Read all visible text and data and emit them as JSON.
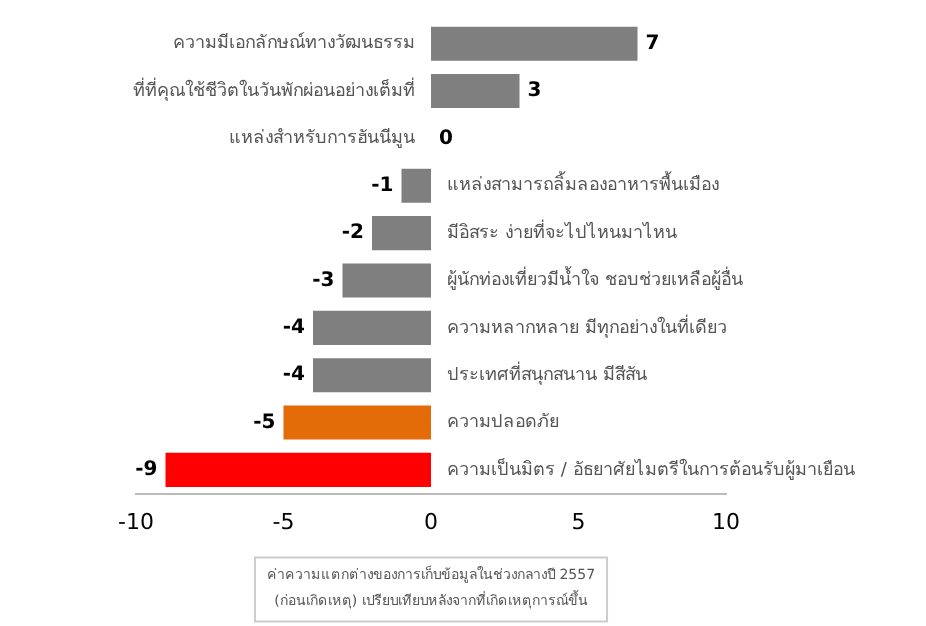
{
  "chart_data": {
    "type": "bar",
    "orientation": "horizontal",
    "categories": [
      "ความมีเอกลักษณ์ทางวัฒนธรรม",
      "ที่ที่คุณใช้ชีวิตในวันพักผ่อนอย่างเต็มที่",
      "แหล่งสำหรับการฮันนีมูน",
      "แหล่งสามารถลิ้มลองอาหารพื้นเมือง",
      "มีอิสระ ง่ายที่จะไปไหนมาไหน",
      "ผู้นักท่องเที่ยวมีน้ำใจ ชอบช่วยเหลือผู้อื่น",
      "ความหลากหลาย มีทุกอย่างในที่เดียว",
      "ประเทศที่สนุกสนาน มีสีสัน",
      "ความปลอดภัย",
      "ความเป็นมิตร / อัธยาศัยไมตรีในการต้อนรับผู้มาเยือน"
    ],
    "values": [
      7,
      3,
      0,
      -1,
      -2,
      -3,
      -4,
      -4,
      -5,
      -9
    ],
    "colors": [
      "#7f7f7f",
      "#7f7f7f",
      "#7f7f7f",
      "#7f7f7f",
      "#7f7f7f",
      "#7f7f7f",
      "#7f7f7f",
      "#7f7f7f",
      "#e36c09",
      "#ff0000"
    ],
    "xlim": [
      -10,
      10
    ],
    "xticks": [
      -10,
      -5,
      0,
      5,
      10
    ],
    "grid": false,
    "legend": false,
    "data_labels": true,
    "annotations": [
      "ค่าความแตกต่างของการเก็บข้อมูลในช่วงกลางปี 2557 (ก่อนเกิดเหตุ) เปรียบเทียบหลังจากที่เกิดเหตุการณ์ขึ้น"
    ]
  }
}
